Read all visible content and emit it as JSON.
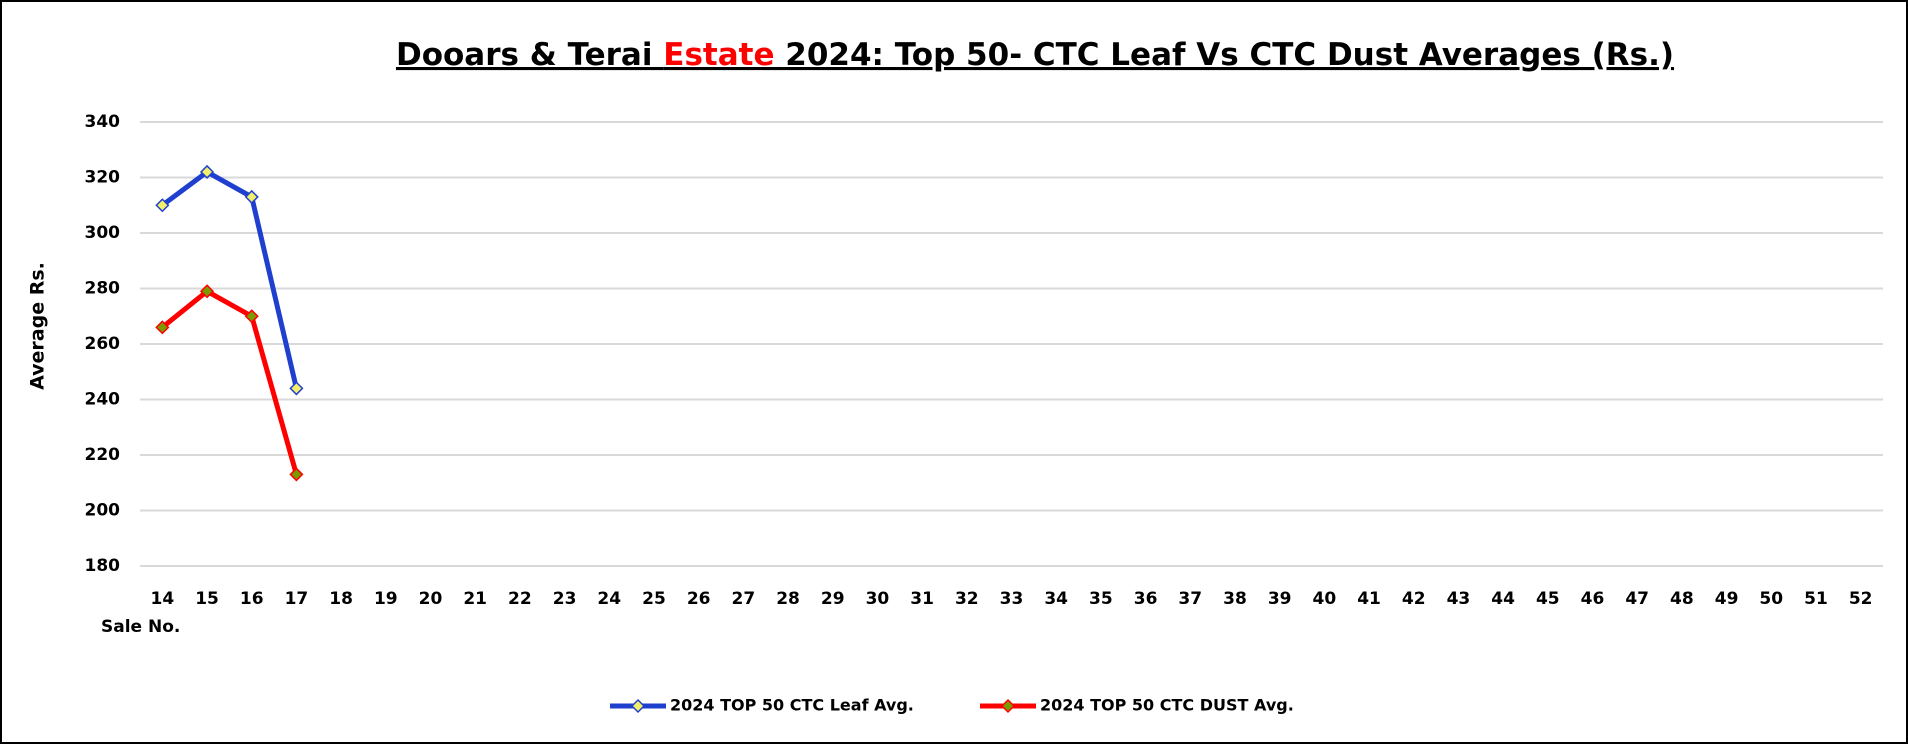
{
  "chart_data": {
    "type": "line",
    "title": [
      "Dooars & Terai ",
      "Estate",
      " 2024: Top 50- CTC Leaf Vs CTC Dust  Averages (Rs.)"
    ],
    "title_highlight": 1,
    "title_highlight_color": "#ff0000",
    "ylabel": "Average Rs.",
    "xlabel": "Sale No.",
    "categories": [
      "14",
      "15",
      "16",
      "17",
      "18",
      "19",
      "20",
      "21",
      "22",
      "23",
      "24",
      "25",
      "26",
      "27",
      "28",
      "29",
      "30",
      "31",
      "32",
      "33",
      "34",
      "35",
      "36",
      "37",
      "38",
      "39",
      "40",
      "41",
      "42",
      "43",
      "44",
      "45",
      "46",
      "47",
      "48",
      "49",
      "50",
      "51",
      "52"
    ],
    "series": [
      {
        "name": "2024 TOP 50 CTC Leaf Avg.",
        "color": "#1f3fcf",
        "marker_color": "#f2ef6a",
        "values": [
          310,
          322,
          313,
          244,
          null,
          null,
          null,
          null,
          null,
          null,
          null,
          null,
          null,
          null,
          null,
          null,
          null,
          null,
          null,
          null,
          null,
          null,
          null,
          null,
          null,
          null,
          null,
          null,
          null,
          null,
          null,
          null,
          null,
          null,
          null,
          null,
          null,
          null,
          null
        ]
      },
      {
        "name": "2024 TOP 50 CTC DUST Avg.",
        "color": "#ff0000",
        "marker_color": "#7a9a00",
        "values": [
          266,
          279,
          270,
          213,
          null,
          null,
          null,
          null,
          null,
          null,
          null,
          null,
          null,
          null,
          null,
          null,
          null,
          null,
          null,
          null,
          null,
          null,
          null,
          null,
          null,
          null,
          null,
          null,
          null,
          null,
          null,
          null,
          null,
          null,
          null,
          null,
          null,
          null,
          null
        ]
      }
    ],
    "ylim": [
      180,
      340
    ],
    "yticks": [
      180,
      200,
      220,
      240,
      260,
      280,
      300,
      320,
      340
    ],
    "grid": true,
    "legend": "bottom"
  }
}
